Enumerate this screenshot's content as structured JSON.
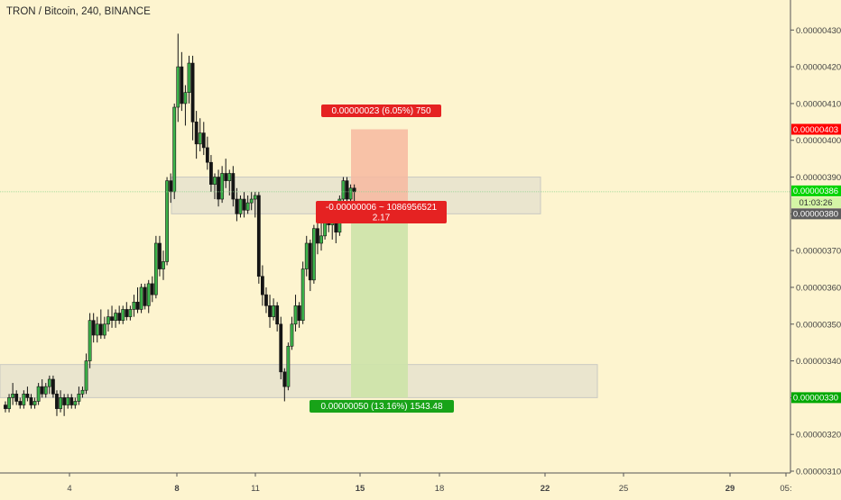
{
  "chart_data": {
    "type": "candlestick",
    "title": "TRON / Bitcoin, 240, BINANCE",
    "ylim": [
      3.1e-06,
      4.34e-06
    ],
    "y_ticks": [
      "0.00000310",
      "0.00000320",
      "0.00000330",
      "0.00000340",
      "0.00000350",
      "0.00000360",
      "0.00000370",
      "0.00000380",
      "0.00000390",
      "0.00000400",
      "0.00000410",
      "0.00000420",
      "0.00000430"
    ],
    "x_ticks": [
      "4",
      "8",
      "11",
      "15",
      "18",
      "22",
      "25",
      "29",
      "05:"
    ],
    "price_labels": [
      {
        "name": "stop-level",
        "value": 4.03e-06,
        "text": "0.00000403",
        "color": "#ff0000"
      },
      {
        "name": "current-price",
        "value": 3.86e-06,
        "text": "0.00000386",
        "color": "#00d400"
      },
      {
        "name": "countdown",
        "value": 3.83e-06,
        "text": "01:03:26",
        "color": "#d4f5a6"
      },
      {
        "name": "entry-level",
        "value": 3.8e-06,
        "text": "0.00000380",
        "color": "#5d5d5d"
      },
      {
        "name": "target-level",
        "value": 3.3e-06,
        "text": "0.00000330",
        "color": "#00a800"
      }
    ],
    "position": {
      "stop_label": "0.00000023 (6.05%) 750",
      "entry_label_line1": "-0.00000006 ~ 1086956521",
      "entry_label_line2": "2.17",
      "target_label": "0.00000050 (13.16%) 1543.48",
      "stop": 4.03e-06,
      "entry": 3.8e-06,
      "target": 3.3e-06,
      "risk_color": "#f7b8a0",
      "reward_color": "#cde3a8"
    },
    "zones": [
      {
        "name": "resistance-zone",
        "from": 3.8e-06,
        "to": 3.9e-06
      },
      {
        "name": "support-zone",
        "from": 3.3e-06,
        "to": 3.39e-06
      }
    ],
    "candles": [
      {
        "o": 3.28,
        "h": 3.29,
        "l": 3.26,
        "c": 3.27
      },
      {
        "o": 3.27,
        "h": 3.31,
        "l": 3.26,
        "c": 3.3
      },
      {
        "o": 3.3,
        "h": 3.34,
        "l": 3.28,
        "c": 3.31
      },
      {
        "o": 3.31,
        "h": 3.32,
        "l": 3.28,
        "c": 3.29
      },
      {
        "o": 3.29,
        "h": 3.3,
        "l": 3.27,
        "c": 3.28
      },
      {
        "o": 3.28,
        "h": 3.32,
        "l": 3.27,
        "c": 3.31
      },
      {
        "o": 3.31,
        "h": 3.33,
        "l": 3.29,
        "c": 3.3
      },
      {
        "o": 3.3,
        "h": 3.31,
        "l": 3.27,
        "c": 3.28
      },
      {
        "o": 3.28,
        "h": 3.3,
        "l": 3.27,
        "c": 3.29
      },
      {
        "o": 3.29,
        "h": 3.34,
        "l": 3.28,
        "c": 3.33
      },
      {
        "o": 3.33,
        "h": 3.35,
        "l": 3.3,
        "c": 3.31
      },
      {
        "o": 3.31,
        "h": 3.34,
        "l": 3.3,
        "c": 3.33
      },
      {
        "o": 3.33,
        "h": 3.36,
        "l": 3.31,
        "c": 3.35
      },
      {
        "o": 3.35,
        "h": 3.36,
        "l": 3.3,
        "c": 3.31
      },
      {
        "o": 3.31,
        "h": 3.32,
        "l": 3.25,
        "c": 3.27
      },
      {
        "o": 3.27,
        "h": 3.32,
        "l": 3.26,
        "c": 3.3
      },
      {
        "o": 3.3,
        "h": 3.31,
        "l": 3.25,
        "c": 3.28
      },
      {
        "o": 3.28,
        "h": 3.31,
        "l": 3.27,
        "c": 3.3
      },
      {
        "o": 3.3,
        "h": 3.31,
        "l": 3.27,
        "c": 3.28
      },
      {
        "o": 3.28,
        "h": 3.3,
        "l": 3.27,
        "c": 3.29
      },
      {
        "o": 3.29,
        "h": 3.33,
        "l": 3.28,
        "c": 3.31
      },
      {
        "o": 3.31,
        "h": 3.33,
        "l": 3.3,
        "c": 3.32
      },
      {
        "o": 3.32,
        "h": 3.42,
        "l": 3.31,
        "c": 3.4
      },
      {
        "o": 3.4,
        "h": 3.53,
        "l": 3.38,
        "c": 3.51
      },
      {
        "o": 3.51,
        "h": 3.53,
        "l": 3.45,
        "c": 3.47
      },
      {
        "o": 3.47,
        "h": 3.52,
        "l": 3.45,
        "c": 3.5
      },
      {
        "o": 3.5,
        "h": 3.54,
        "l": 3.46,
        "c": 3.47
      },
      {
        "o": 3.47,
        "h": 3.52,
        "l": 3.46,
        "c": 3.5
      },
      {
        "o": 3.5,
        "h": 3.54,
        "l": 3.48,
        "c": 3.52
      },
      {
        "o": 3.52,
        "h": 3.55,
        "l": 3.49,
        "c": 3.51
      },
      {
        "o": 3.51,
        "h": 3.54,
        "l": 3.49,
        "c": 3.53
      },
      {
        "o": 3.53,
        "h": 3.55,
        "l": 3.5,
        "c": 3.51
      },
      {
        "o": 3.51,
        "h": 3.55,
        "l": 3.5,
        "c": 3.54
      },
      {
        "o": 3.54,
        "h": 3.56,
        "l": 3.51,
        "c": 3.52
      },
      {
        "o": 3.52,
        "h": 3.55,
        "l": 3.51,
        "c": 3.54
      },
      {
        "o": 3.54,
        "h": 3.58,
        "l": 3.52,
        "c": 3.56
      },
      {
        "o": 3.56,
        "h": 3.6,
        "l": 3.53,
        "c": 3.54
      },
      {
        "o": 3.54,
        "h": 3.61,
        "l": 3.53,
        "c": 3.6
      },
      {
        "o": 3.6,
        "h": 3.61,
        "l": 3.54,
        "c": 3.55
      },
      {
        "o": 3.55,
        "h": 3.62,
        "l": 3.53,
        "c": 3.61
      },
      {
        "o": 3.61,
        "h": 3.63,
        "l": 3.56,
        "c": 3.58
      },
      {
        "o": 3.58,
        "h": 3.74,
        "l": 3.57,
        "c": 3.72
      },
      {
        "o": 3.72,
        "h": 3.74,
        "l": 3.63,
        "c": 3.65
      },
      {
        "o": 3.65,
        "h": 3.7,
        "l": 3.62,
        "c": 3.67
      },
      {
        "o": 3.67,
        "h": 3.9,
        "l": 3.66,
        "c": 3.89
      },
      {
        "o": 3.89,
        "h": 3.91,
        "l": 3.83,
        "c": 3.86
      },
      {
        "o": 3.86,
        "h": 4.1,
        "l": 3.84,
        "c": 4.09
      },
      {
        "o": 4.09,
        "h": 4.29,
        "l": 4.05,
        "c": 4.2
      },
      {
        "o": 4.2,
        "h": 4.24,
        "l": 4.08,
        "c": 4.1
      },
      {
        "o": 4.1,
        "h": 4.15,
        "l": 4.04,
        "c": 4.13
      },
      {
        "o": 4.13,
        "h": 4.23,
        "l": 4.1,
        "c": 4.21
      },
      {
        "o": 4.21,
        "h": 4.23,
        "l": 4.0,
        "c": 4.05
      },
      {
        "o": 4.05,
        "h": 4.08,
        "l": 3.95,
        "c": 3.99
      },
      {
        "o": 3.99,
        "h": 4.06,
        "l": 3.97,
        "c": 4.02
      },
      {
        "o": 4.02,
        "h": 4.05,
        "l": 3.96,
        "c": 3.98
      },
      {
        "o": 3.98,
        "h": 4.01,
        "l": 3.92,
        "c": 3.94
      },
      {
        "o": 3.94,
        "h": 3.96,
        "l": 3.86,
        "c": 3.88
      },
      {
        "o": 3.88,
        "h": 3.91,
        "l": 3.84,
        "c": 3.9
      },
      {
        "o": 3.9,
        "h": 3.92,
        "l": 3.82,
        "c": 3.84
      },
      {
        "o": 3.84,
        "h": 3.93,
        "l": 3.83,
        "c": 3.91
      },
      {
        "o": 3.91,
        "h": 3.95,
        "l": 3.87,
        "c": 3.89
      },
      {
        "o": 3.89,
        "h": 3.92,
        "l": 3.85,
        "c": 3.91
      },
      {
        "o": 3.91,
        "h": 3.93,
        "l": 3.82,
        "c": 3.84
      },
      {
        "o": 3.84,
        "h": 3.87,
        "l": 3.78,
        "c": 3.8
      },
      {
        "o": 3.8,
        "h": 3.85,
        "l": 3.79,
        "c": 3.84
      },
      {
        "o": 3.84,
        "h": 3.86,
        "l": 3.79,
        "c": 3.81
      },
      {
        "o": 3.81,
        "h": 3.85,
        "l": 3.8,
        "c": 3.83
      },
      {
        "o": 3.83,
        "h": 3.86,
        "l": 3.81,
        "c": 3.84
      },
      {
        "o": 3.84,
        "h": 3.86,
        "l": 3.79,
        "c": 3.85
      },
      {
        "o": 3.85,
        "h": 3.86,
        "l": 3.61,
        "c": 3.63
      },
      {
        "o": 3.63,
        "h": 3.66,
        "l": 3.55,
        "c": 3.58
      },
      {
        "o": 3.58,
        "h": 3.6,
        "l": 3.53,
        "c": 3.55
      },
      {
        "o": 3.55,
        "h": 3.58,
        "l": 3.49,
        "c": 3.52
      },
      {
        "o": 3.52,
        "h": 3.57,
        "l": 3.51,
        "c": 3.55
      },
      {
        "o": 3.55,
        "h": 3.56,
        "l": 3.48,
        "c": 3.5
      },
      {
        "o": 3.5,
        "h": 3.52,
        "l": 3.35,
        "c": 3.37
      },
      {
        "o": 3.37,
        "h": 3.38,
        "l": 3.29,
        "c": 3.33
      },
      {
        "o": 3.33,
        "h": 3.45,
        "l": 3.32,
        "c": 3.44
      },
      {
        "o": 3.44,
        "h": 3.52,
        "l": 3.43,
        "c": 3.5
      },
      {
        "o": 3.5,
        "h": 3.58,
        "l": 3.48,
        "c": 3.55
      },
      {
        "o": 3.55,
        "h": 3.56,
        "l": 3.49,
        "c": 3.51
      },
      {
        "o": 3.51,
        "h": 3.67,
        "l": 3.5,
        "c": 3.65
      },
      {
        "o": 3.65,
        "h": 3.74,
        "l": 3.63,
        "c": 3.72
      },
      {
        "o": 3.72,
        "h": 3.73,
        "l": 3.59,
        "c": 3.62
      },
      {
        "o": 3.62,
        "h": 3.77,
        "l": 3.61,
        "c": 3.76
      },
      {
        "o": 3.76,
        "h": 3.78,
        "l": 3.69,
        "c": 3.72
      },
      {
        "o": 3.72,
        "h": 3.79,
        "l": 3.7,
        "c": 3.74
      },
      {
        "o": 3.74,
        "h": 3.82,
        "l": 3.73,
        "c": 3.8
      },
      {
        "o": 3.8,
        "h": 3.82,
        "l": 3.75,
        "c": 3.77
      },
      {
        "o": 3.77,
        "h": 3.82,
        "l": 3.73,
        "c": 3.8
      },
      {
        "o": 3.8,
        "h": 3.81,
        "l": 3.72,
        "c": 3.75
      },
      {
        "o": 3.75,
        "h": 3.85,
        "l": 3.74,
        "c": 3.84
      },
      {
        "o": 3.84,
        "h": 3.9,
        "l": 3.83,
        "c": 3.89
      },
      {
        "o": 3.89,
        "h": 3.9,
        "l": 3.82,
        "c": 3.84
      },
      {
        "o": 3.84,
        "h": 3.88,
        "l": 3.83,
        "c": 3.87
      },
      {
        "o": 3.87,
        "h": 3.88,
        "l": 3.83,
        "c": 3.86
      }
    ]
  }
}
